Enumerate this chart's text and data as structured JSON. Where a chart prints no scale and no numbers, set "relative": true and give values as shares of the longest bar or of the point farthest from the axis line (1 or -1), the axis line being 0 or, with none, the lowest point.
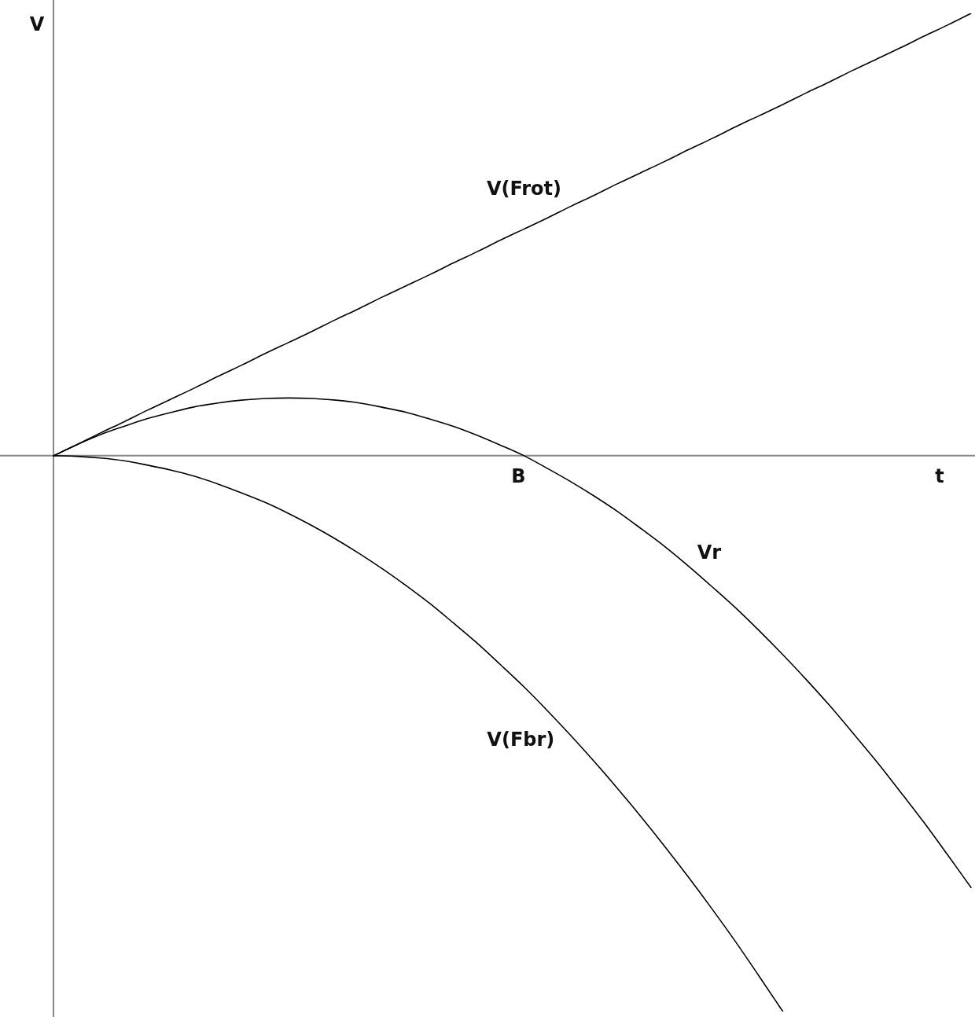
{
  "chart_data": {
    "type": "line",
    "xlabel": "t",
    "ylabel": "V",
    "relative": true,
    "marker": "none",
    "line_style": "solid",
    "categories": [
      null,
      null,
      null,
      null,
      null,
      null,
      null,
      null,
      null,
      null,
      null,
      null,
      null,
      null,
      null,
      null,
      null,
      null,
      null,
      null,
      null,
      null,
      null,
      null,
      null,
      null,
      null,
      null,
      null,
      null,
      null,
      null,
      null,
      null,
      null,
      null,
      null,
      null,
      null,
      null
    ],
    "annotations": [
      {
        "text": "B",
        "y": 0
      }
    ],
    "series": [
      {
        "name": "V(Frot)",
        "color": "#000000",
        "values": [
          0,
          0.02,
          0.041,
          0.061,
          0.082,
          0.102,
          0.122,
          0.143,
          0.163,
          0.184,
          0.204,
          0.224,
          0.245,
          0.265,
          0.286,
          0.306,
          0.326,
          0.347,
          0.367,
          0.388,
          0.408,
          0.428,
          0.449,
          0.469,
          0.49,
          0.51,
          0.53,
          0.551,
          0.571,
          0.592,
          0.612,
          0.632,
          0.653,
          0.673,
          0.694,
          0.714,
          0.734,
          0.755,
          0.775,
          0.796
        ]
      },
      {
        "name": "Vr",
        "color": "#000000",
        "values": [
          0,
          0.02,
          0.038,
          0.053,
          0.067,
          0.078,
          0.088,
          0.095,
          0.1,
          0.103,
          0.104,
          0.103,
          0.1,
          0.095,
          0.087,
          0.078,
          0.066,
          0.053,
          0.037,
          0.019,
          0,
          -0.023,
          -0.047,
          -0.073,
          -0.101,
          -0.132,
          -0.164,
          -0.199,
          -0.236,
          -0.274,
          -0.315,
          -0.358,
          -0.403,
          -0.45,
          -0.5,
          -0.551,
          -0.605,
          -0.66,
          -0.718,
          -0.777
        ]
      },
      {
        "name": "V(Fbr)",
        "color": "#000000",
        "values": [
          0,
          -0.001,
          -0.004,
          -0.009,
          -0.017,
          -0.026,
          -0.037,
          -0.051,
          -0.067,
          -0.084,
          -0.104,
          -0.126,
          -0.15,
          -0.176,
          -0.204,
          -0.234,
          -0.266,
          -0.301,
          -0.337,
          -0.376,
          -0.416,
          -0.459,
          -0.504,
          -0.551,
          -0.6,
          -0.651,
          -0.704,
          -0.759,
          -0.816,
          -0.875,
          -0.937,
          -1.0,
          null,
          null,
          null,
          null,
          null,
          null,
          null,
          null
        ]
      }
    ]
  }
}
